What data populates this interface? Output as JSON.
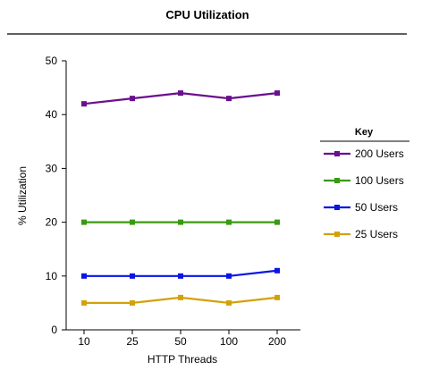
{
  "chart_data": {
    "type": "line",
    "title": "CPU Utilization",
    "xlabel": "HTTP Threads",
    "ylabel": "% Utilization",
    "categories": [
      "10",
      "25",
      "50",
      "100",
      "200"
    ],
    "ylim": [
      0,
      50
    ],
    "yticks": [
      0,
      10,
      20,
      30,
      40,
      50
    ],
    "grid": false,
    "legend": {
      "title": "Key",
      "placement": "right"
    },
    "series": [
      {
        "name": "200 Users",
        "color": "#6a0f8e",
        "values": [
          42,
          43,
          44,
          43,
          44
        ]
      },
      {
        "name": "100 Users",
        "color": "#3a9a12",
        "values": [
          20,
          20,
          20,
          20,
          20
        ]
      },
      {
        "name": "50 Users",
        "color": "#0a14e6",
        "values": [
          10,
          10,
          10,
          10,
          11
        ]
      },
      {
        "name": "25 Users",
        "color": "#d4a10a",
        "values": [
          5,
          5,
          6,
          5,
          6
        ]
      }
    ]
  }
}
